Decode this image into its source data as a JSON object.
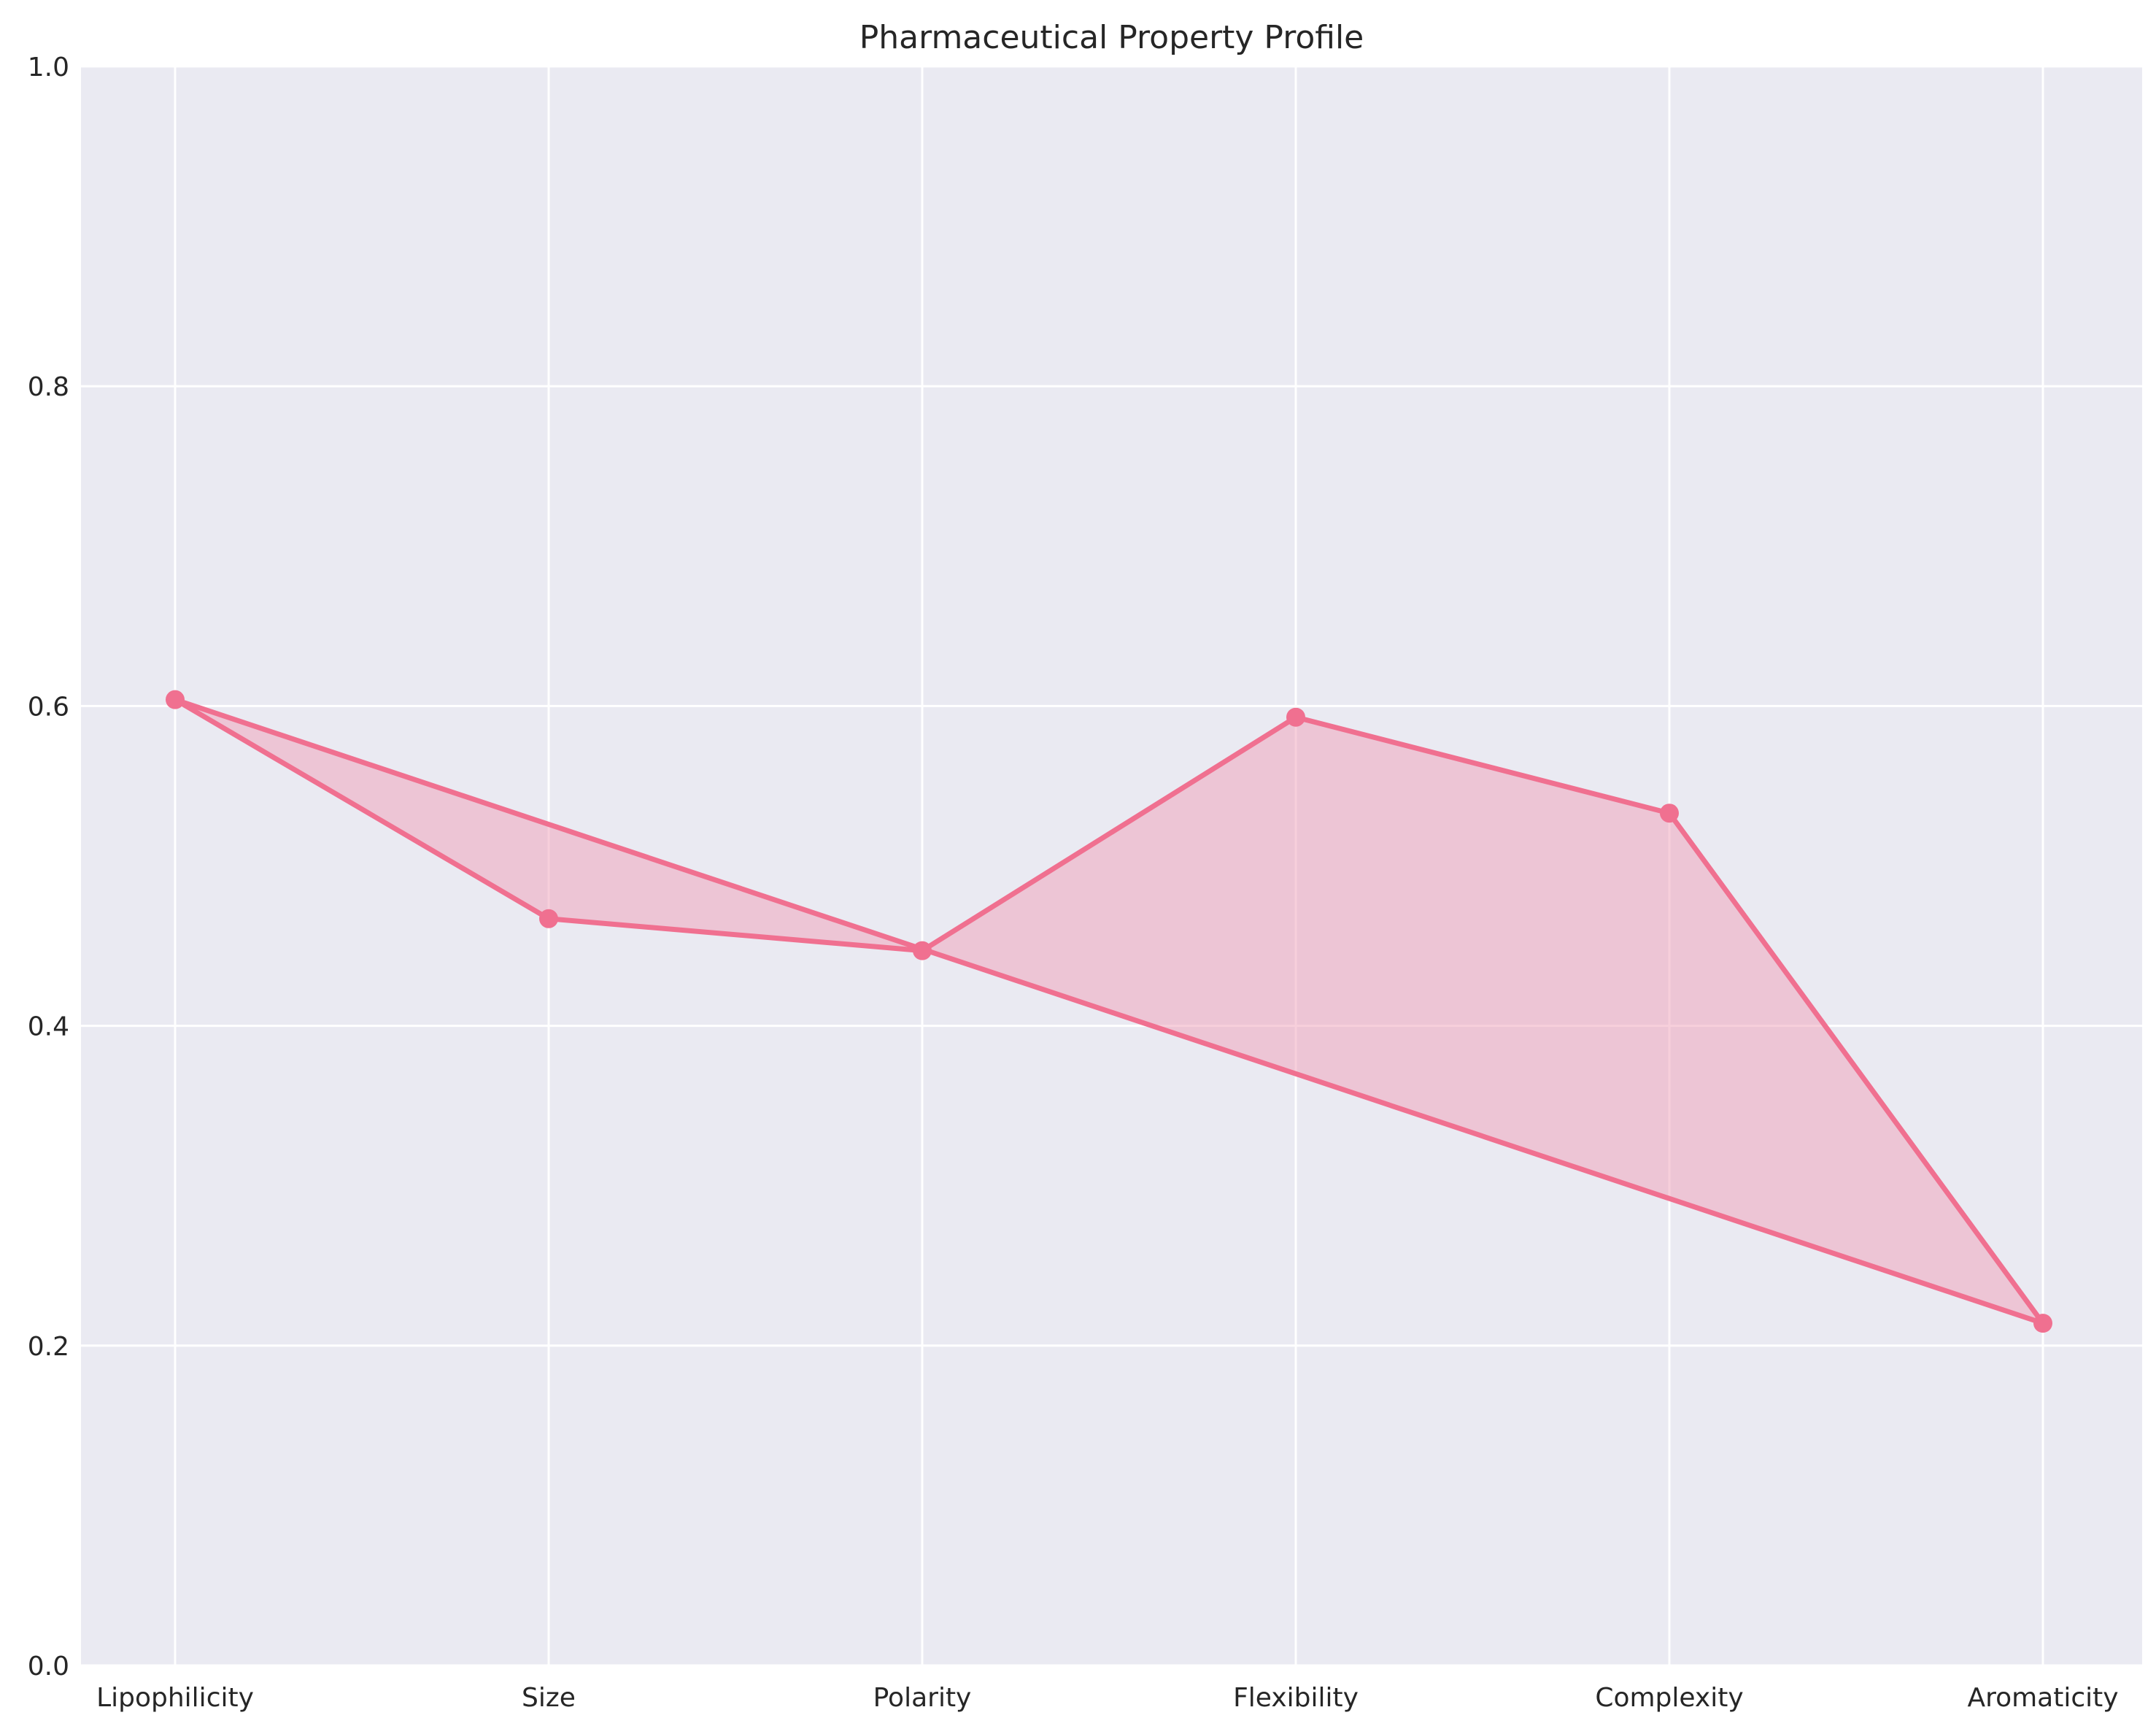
{
  "chart_data": {
    "type": "line",
    "title": "Pharmaceutical Property Profile",
    "xlabel": "",
    "ylabel": "",
    "categories": [
      "Lipophilicity",
      "Size",
      "Polarity",
      "Flexibility",
      "Complexity",
      "Aromaticity"
    ],
    "series": [
      {
        "values": [
          0.604,
          0.467,
          0.447,
          0.593,
          0.533,
          0.214
        ],
        "closed": true,
        "filled": true
      }
    ],
    "ylim": [
      0,
      1
    ],
    "yticks": [
      "0.0",
      "0.2",
      "0.4",
      "0.6",
      "0.8",
      "1.0"
    ],
    "grid": true,
    "legend": "none",
    "colors": {
      "line": "#f07090",
      "fill": "#f0a0b8",
      "plot_background": "#eaeaf2",
      "grid": "#ffffff"
    }
  }
}
